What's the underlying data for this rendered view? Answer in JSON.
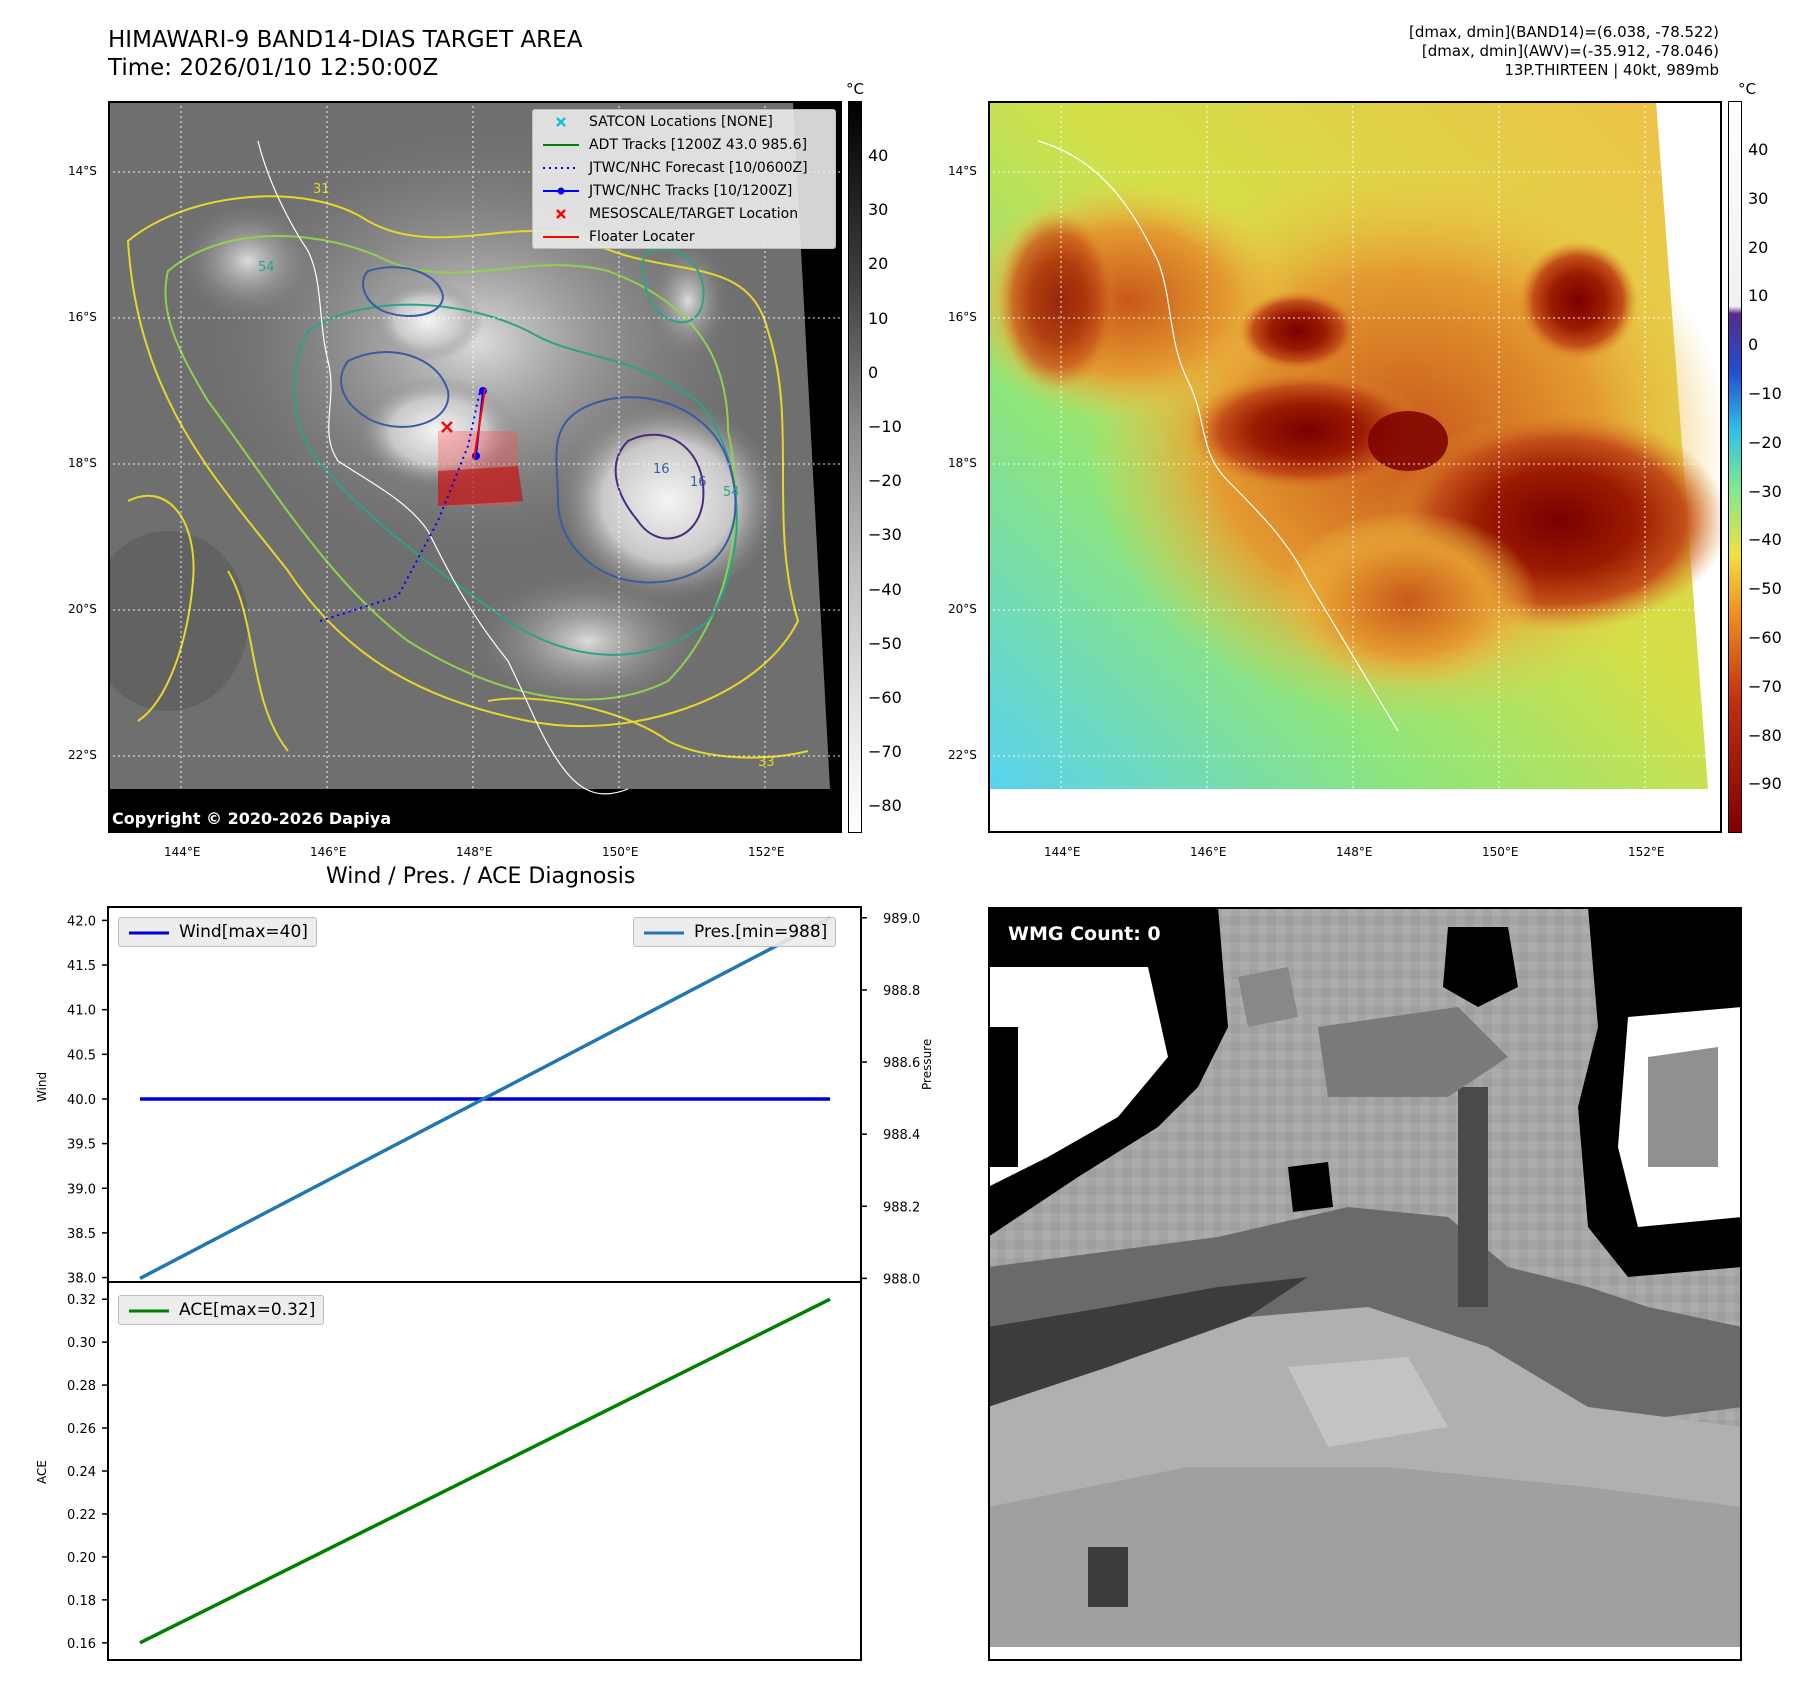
{
  "header": {
    "title_line1": "HIMAWARI-9 BAND14-DIAS TARGET AREA",
    "title_line2": "Time: 2026/01/10 12:50:00Z",
    "info_line1": "[dmax, dmin](BAND14)=(6.038, -78.522)",
    "info_line2": "[dmax, dmin](AWV)=(-35.912, -78.046)",
    "info_line3": "13P.THIRTEEN | 40kt, 989mb"
  },
  "map": {
    "lon_ticks": [
      "144°E",
      "146°E",
      "148°E",
      "150°E",
      "152°E"
    ],
    "lat_ticks": [
      "14°S",
      "16°S",
      "18°S",
      "20°S",
      "22°S"
    ],
    "copyright": "Copyright © 2020-2026 Dapiya",
    "contour_labels": [
      "31",
      "54",
      "16",
      "16",
      "54",
      "33"
    ]
  },
  "legend_map": {
    "items": [
      {
        "label": "SATCON Locations [NONE]",
        "color": "#17becf",
        "kind": "xmark"
      },
      {
        "label": "ADT Tracks [1200Z 43.0 985.6]",
        "color": "#008000",
        "kind": "line"
      },
      {
        "label": "JTWC/NHC Forecast [10/0600Z]",
        "color": "#0000ff",
        "kind": "dotted"
      },
      {
        "label": "JTWC/NHC Tracks [10/1200Z]",
        "color": "#0000ff",
        "kind": "dotline"
      },
      {
        "label": "MESOSCALE/TARGET Location",
        "color": "#ff0000",
        "kind": "xmark"
      },
      {
        "label": "Floater Locater",
        "color": "#ff0000",
        "kind": "line"
      }
    ]
  },
  "colorbar_left": {
    "unit": "°C",
    "ticks": [
      "40",
      "30",
      "20",
      "10",
      "0",
      "−10",
      "−20",
      "−30",
      "−40",
      "−50",
      "−60",
      "−70",
      "−80"
    ]
  },
  "colorbar_right": {
    "unit": "°C",
    "ticks": [
      "40",
      "30",
      "20",
      "10",
      "0",
      "−10",
      "−20",
      "−30",
      "−40",
      "−50",
      "−60",
      "−70",
      "−80",
      "−90"
    ]
  },
  "chart_data": [
    {
      "type": "line",
      "title": "Wind / Pres. / ACE Diagnosis",
      "ylabel": "Wind",
      "y2label": "Pressure",
      "ylim": [
        37.95,
        42.15
      ],
      "y2lim": [
        987.99,
        989.03
      ],
      "yticks": [
        "42.0",
        "41.5",
        "41.0",
        "40.5",
        "40.0",
        "39.5",
        "39.0",
        "38.5",
        "38.0"
      ],
      "y2ticks": [
        "989.0",
        "988.8",
        "988.6",
        "988.4",
        "988.2",
        "988.0"
      ],
      "series": [
        {
          "name": "Wind[max=40]",
          "axis": "left",
          "color": "#0000dd",
          "y": [
            40,
            40
          ]
        },
        {
          "name": "Pres.[min=988]",
          "axis": "right",
          "color": "#1f77b4",
          "y": [
            988,
            989
          ]
        }
      ],
      "legend": [
        "top-left",
        "top-right"
      ]
    },
    {
      "type": "line",
      "ylabel": "ACE",
      "ylim": [
        0.152,
        0.328
      ],
      "yticks": [
        "0.32",
        "0.30",
        "0.28",
        "0.26",
        "0.24",
        "0.22",
        "0.20",
        "0.18",
        "0.16"
      ],
      "series": [
        {
          "name": "ACE[max=0.32]",
          "color": "#008000",
          "y": [
            0.16,
            0.32
          ]
        }
      ],
      "legend": "top-left"
    }
  ],
  "wmg": {
    "label": "WMG Count: 0"
  }
}
